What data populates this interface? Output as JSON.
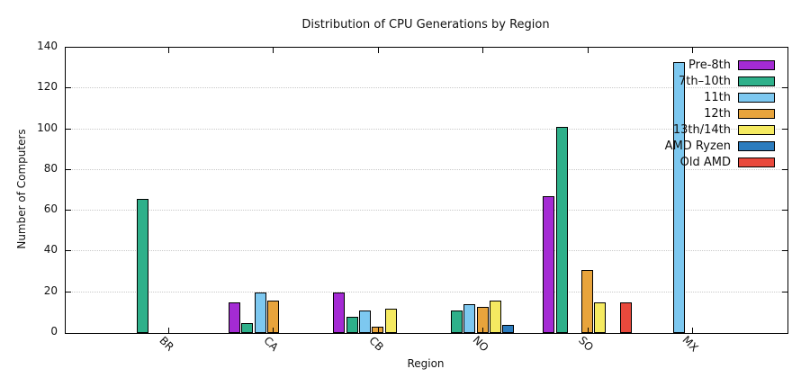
{
  "chart_data": {
    "type": "bar",
    "title": "Distribution of CPU Generations by Region",
    "xlabel": "Region",
    "ylabel": "Number of Computers",
    "ylim": [
      0,
      140
    ],
    "ytick_step": 20,
    "grid": "horizontal dotted gridlines at each y tick, ticks mirrored on top and right borders",
    "legend_position": "inside top-right, no box, drawn above bars",
    "categories": [
      "BR",
      "CA",
      "CB",
      "NO",
      "SO",
      "MX"
    ],
    "series": [
      {
        "name": "Pre-8th",
        "color": "#a42bd4",
        "values": [
          null,
          15,
          20,
          null,
          67,
          null
        ]
      },
      {
        "name": "7th–10th",
        "color": "#2eb08a",
        "values": [
          66,
          5,
          8,
          11,
          101,
          null
        ]
      },
      {
        "name": "11th",
        "color": "#7dc8f0",
        "values": [
          null,
          20,
          11,
          14,
          null,
          133
        ]
      },
      {
        "name": "12th",
        "color": "#e8a43c",
        "values": [
          null,
          16,
          3,
          13,
          31,
          null
        ]
      },
      {
        "name": "13th/14th",
        "color": "#f5ea61",
        "values": [
          null,
          null,
          12,
          16,
          15,
          null
        ]
      },
      {
        "name": "AMD Ryzen",
        "color": "#2c7cbe",
        "values": [
          null,
          null,
          null,
          4,
          null,
          null
        ]
      },
      {
        "name": "Old AMD",
        "color": "#e9493c",
        "values": [
          null,
          null,
          null,
          null,
          15,
          null
        ]
      }
    ]
  },
  "colors": {
    "axis": "#000000",
    "gridline": "#c9c9c9",
    "background": "#ffffff",
    "text": "#111111"
  }
}
